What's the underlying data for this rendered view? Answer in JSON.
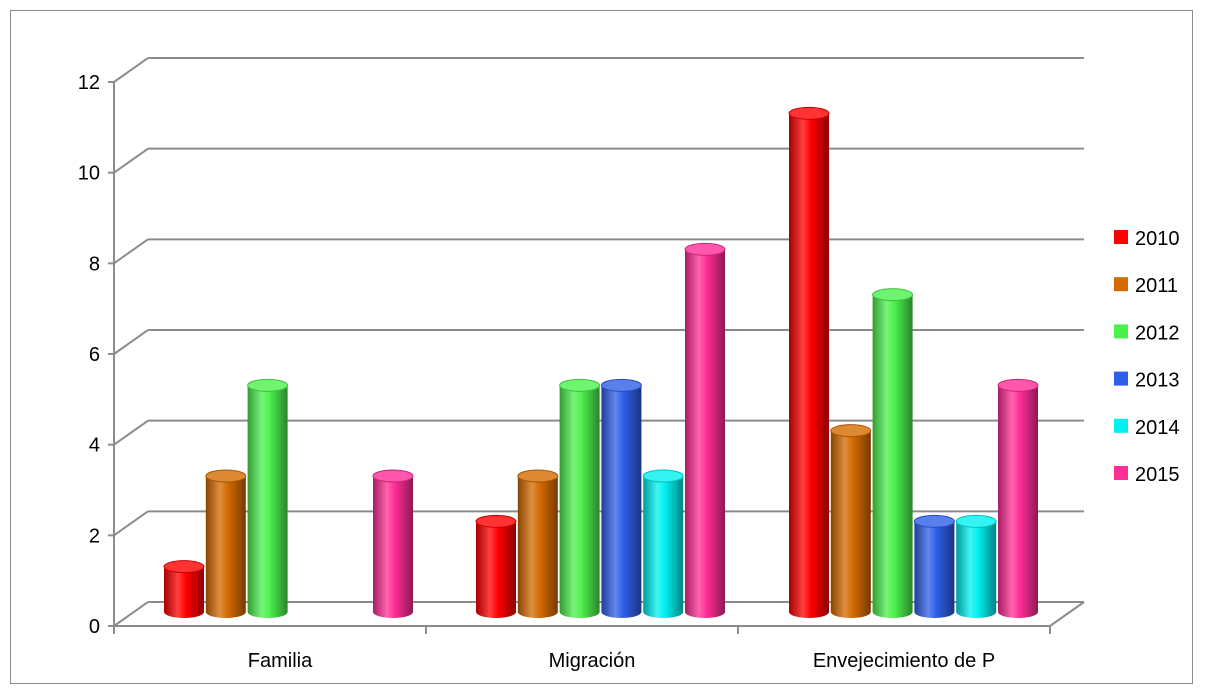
{
  "chart_data": {
    "type": "bar",
    "style": "3d-cylinder",
    "categories": [
      "Familia",
      "Migración",
      "Envejecimiento de P"
    ],
    "series": [
      {
        "name": "2010",
        "color": "#ff0000",
        "values": [
          1,
          2,
          11
        ]
      },
      {
        "name": "2011",
        "color": "#d46a00",
        "values": [
          3,
          3,
          4
        ]
      },
      {
        "name": "2012",
        "color": "#4cf04c",
        "values": [
          5,
          5,
          7
        ]
      },
      {
        "name": "2013",
        "color": "#2f5fe8",
        "values": [
          0,
          5,
          2
        ]
      },
      {
        "name": "2014",
        "color": "#00f0f0",
        "values": [
          0,
          3,
          2
        ]
      },
      {
        "name": "2015",
        "color": "#ff2d96",
        "values": [
          3,
          8,
          5
        ]
      }
    ],
    "yticks": [
      0,
      2,
      4,
      6,
      8,
      10,
      12
    ],
    "ylim": [
      0,
      12
    ],
    "grid": true,
    "legend": "right"
  }
}
